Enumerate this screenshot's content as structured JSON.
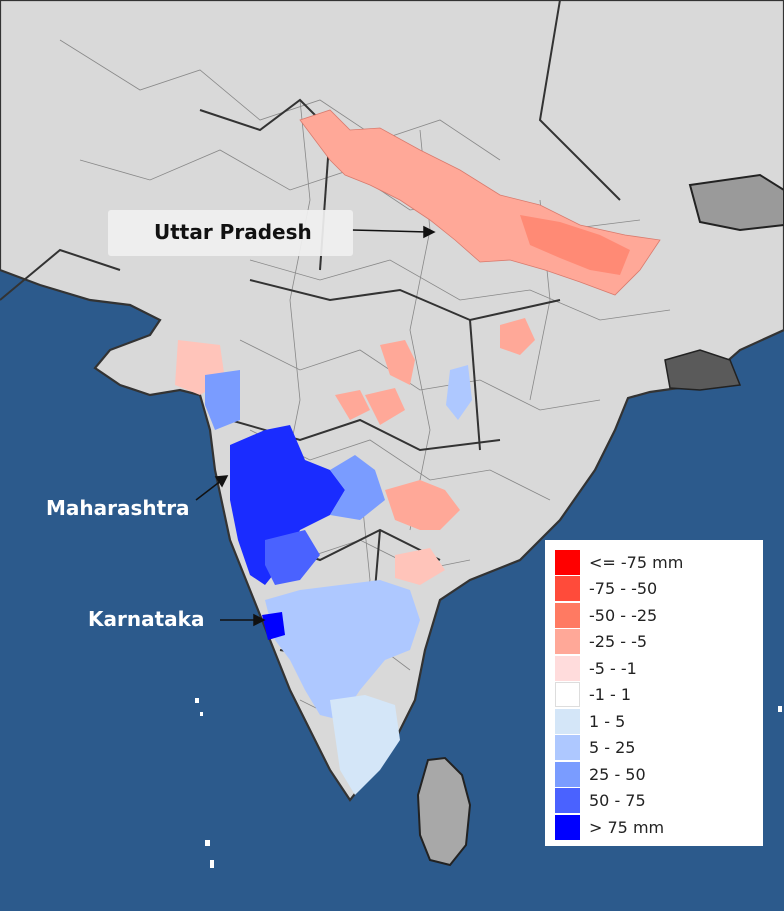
{
  "labels": {
    "uttar_pradesh": "Uttar Pradesh",
    "maharashtra": "Maharashtra",
    "karnataka": "Karnataka"
  },
  "legend": [
    {
      "label": "<= -75 mm",
      "color": "#ff0000"
    },
    {
      "label": "-75 - -50",
      "color": "#ff4b3a"
    },
    {
      "label": "-50 - -25",
      "color": "#ff7a62"
    },
    {
      "label": "-25 - -5",
      "color": "#ffa898"
    },
    {
      "label": "-5 - -1",
      "color": "#ffdcdc"
    },
    {
      "label": "-1 - 1",
      "color": "#ffffff"
    },
    {
      "label": "1 - 5",
      "color": "#d4e6f8"
    },
    {
      "label": "5 - 25",
      "color": "#aec8ff"
    },
    {
      "label": "25 - 50",
      "color": "#7a9cff"
    },
    {
      "label": "50 - 75",
      "color": "#4a62ff"
    },
    {
      "label": "> 75 mm",
      "color": "#0000ff"
    }
  ],
  "colors": {
    "sea": "#2c5a8c",
    "land": "#d9d9d9",
    "border": "#333333"
  }
}
